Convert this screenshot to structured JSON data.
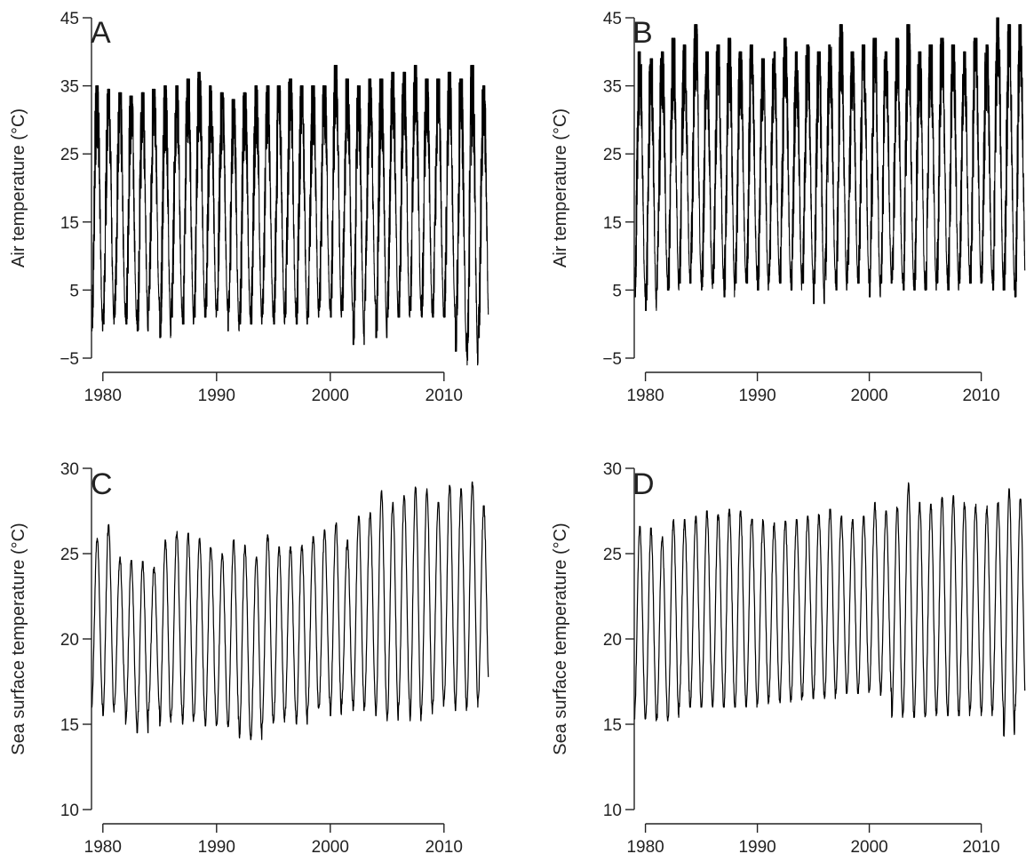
{
  "chart_data": [
    {
      "type": "line",
      "panel_label": "A",
      "ylabel": "Air temperature (°C)",
      "xlabel": "",
      "x_ticks": [
        1980,
        1990,
        2000,
        2010
      ],
      "y_ticks": [
        -5,
        5,
        15,
        25,
        35,
        45
      ],
      "xlim": [
        1979,
        2014
      ],
      "ylim": [
        -5,
        45
      ],
      "series_color": "#000000",
      "envelope": {
        "years": [
          1979,
          1980,
          1981,
          1982,
          1983,
          1984,
          1985,
          1986,
          1987,
          1988,
          1989,
          1990,
          1991,
          1992,
          1993,
          1994,
          1995,
          1996,
          1997,
          1998,
          1999,
          2000,
          2001,
          2002,
          2003,
          2004,
          2005,
          2006,
          2007,
          2008,
          2009,
          2010,
          2011,
          2012,
          2013
        ],
        "annual_max": [
          35,
          34.5,
          34,
          33.5,
          34,
          34.5,
          35,
          35,
          36,
          37,
          35,
          34,
          33,
          34,
          35,
          35,
          35,
          36,
          35,
          35,
          35,
          38,
          36,
          35,
          36,
          36,
          37,
          37,
          38,
          36,
          36,
          37,
          36,
          38,
          35
        ],
        "annual_min": [
          -1,
          0,
          1,
          0,
          -1,
          2,
          -2,
          1,
          0,
          1,
          1,
          2,
          -1,
          0,
          0,
          1,
          0,
          1,
          0,
          1,
          2,
          1,
          2,
          -3,
          2,
          -2,
          1,
          1,
          2,
          1,
          1,
          1,
          -4,
          -6,
          -2
        ]
      }
    },
    {
      "type": "line",
      "panel_label": "B",
      "ylabel": "Air temperature (°C)",
      "xlabel": "",
      "x_ticks": [
        1980,
        1990,
        2000,
        2010
      ],
      "y_ticks": [
        -5,
        5,
        15,
        25,
        35,
        45
      ],
      "xlim": [
        1979,
        2014
      ],
      "ylim": [
        -5,
        45
      ],
      "series_color": "#000000",
      "envelope": {
        "years": [
          1979,
          1980,
          1981,
          1982,
          1983,
          1984,
          1985,
          1986,
          1987,
          1988,
          1989,
          1990,
          1991,
          1992,
          1993,
          1994,
          1995,
          1996,
          1997,
          1998,
          1999,
          2000,
          2001,
          2002,
          2003,
          2004,
          2005,
          2006,
          2007,
          2008,
          2009,
          2010,
          2011,
          2012,
          2013
        ],
        "annual_max": [
          40,
          39,
          40,
          42,
          41,
          44,
          40,
          41,
          42,
          40,
          41,
          39,
          40,
          42,
          40,
          41,
          40,
          41,
          44,
          40,
          41,
          42,
          40,
          42,
          44,
          40,
          41,
          42,
          41,
          40,
          42,
          41,
          45,
          44,
          44
        ],
        "annual_min": [
          4,
          2,
          5,
          5,
          6,
          6,
          5,
          6,
          4,
          6,
          6,
          5,
          6,
          6,
          5,
          6,
          3,
          6,
          5,
          6,
          6,
          4,
          6,
          6,
          5,
          5,
          5,
          6,
          5,
          6,
          6,
          6,
          5,
          5,
          4
        ]
      }
    },
    {
      "type": "line",
      "panel_label": "C",
      "ylabel": "Sea surface temperature (°C)",
      "xlabel": "",
      "x_ticks": [
        1980,
        1990,
        2000,
        2010
      ],
      "y_ticks": [
        10,
        15,
        20,
        25,
        30
      ],
      "xlim": [
        1979,
        2014
      ],
      "ylim": [
        10,
        30
      ],
      "series_color": "#000000",
      "envelope": {
        "years": [
          1979,
          1980,
          1981,
          1982,
          1983,
          1984,
          1985,
          1986,
          1987,
          1988,
          1989,
          1990,
          1991,
          1992,
          1993,
          1994,
          1995,
          1996,
          1997,
          1998,
          1999,
          2000,
          2001,
          2002,
          2003,
          2004,
          2005,
          2006,
          2007,
          2008,
          2009,
          2010,
          2011,
          2012,
          2013
        ],
        "annual_max": [
          25.9,
          26.7,
          24.8,
          24.6,
          24.6,
          24.2,
          25.8,
          26.3,
          26.2,
          25.9,
          25.5,
          25.0,
          25.8,
          25.5,
          24.8,
          26.1,
          25.4,
          25.4,
          25.5,
          26.0,
          26.4,
          26.8,
          25.8,
          27.2,
          27.4,
          28.7,
          28.0,
          28.4,
          28.9,
          28.8,
          28.0,
          29.0,
          28.8,
          29.2,
          27.8
        ],
        "annual_min": [
          16.0,
          15.5,
          16.0,
          15.0,
          14.5,
          15.8,
          14.9,
          15.5,
          15.0,
          15.3,
          14.9,
          15.0,
          14.8,
          14.2,
          14.1,
          15.0,
          15.0,
          15.5,
          15.0,
          15.8,
          16.0,
          15.5,
          16.2,
          15.8,
          16.0,
          15.5,
          15.2,
          16.0,
          15.2,
          15.6,
          16.0,
          16.2,
          15.8,
          16.0,
          16.5
        ]
      }
    },
    {
      "type": "line",
      "panel_label": "D",
      "ylabel": "Sea surface temperature (°C)",
      "xlabel": "",
      "x_ticks": [
        1980,
        1990,
        2000,
        2010
      ],
      "y_ticks": [
        10,
        15,
        20,
        25,
        30
      ],
      "xlim": [
        1979,
        2014
      ],
      "ylim": [
        10,
        30
      ],
      "series_color": "#000000",
      "envelope": {
        "years": [
          1979,
          1980,
          1981,
          1982,
          1983,
          1984,
          1985,
          1986,
          1987,
          1988,
          1989,
          1990,
          1991,
          1992,
          1993,
          1994,
          1995,
          1996,
          1997,
          1998,
          1999,
          2000,
          2001,
          2002,
          2003,
          2004,
          2005,
          2006,
          2007,
          2008,
          2009,
          2010,
          2011,
          2012,
          2013
        ],
        "annual_max": [
          26.6,
          26.5,
          26.0,
          27.0,
          27.0,
          27.2,
          27.5,
          27.4,
          27.6,
          27.5,
          27.2,
          27.0,
          26.8,
          26.9,
          27.0,
          27.2,
          27.3,
          27.6,
          27.2,
          27.0,
          27.2,
          28.0,
          27.5,
          27.8,
          29.2,
          28.0,
          27.9,
          28.3,
          28.4,
          28.0,
          27.9,
          27.8,
          28.0,
          28.8,
          28.2
        ],
        "annual_min": [
          15.3,
          15.2,
          15.2,
          15.2,
          16.0,
          16.0,
          16.0,
          16.0,
          16.0,
          16.0,
          16.0,
          16.2,
          16.3,
          16.2,
          16.4,
          16.5,
          16.5,
          16.5,
          16.8,
          16.8,
          16.8,
          17.0,
          16.7,
          15.4,
          15.4,
          15.4,
          15.5,
          15.5,
          15.5,
          15.5,
          15.8,
          15.5,
          15.8,
          14.3,
          15.8
        ]
      }
    }
  ]
}
